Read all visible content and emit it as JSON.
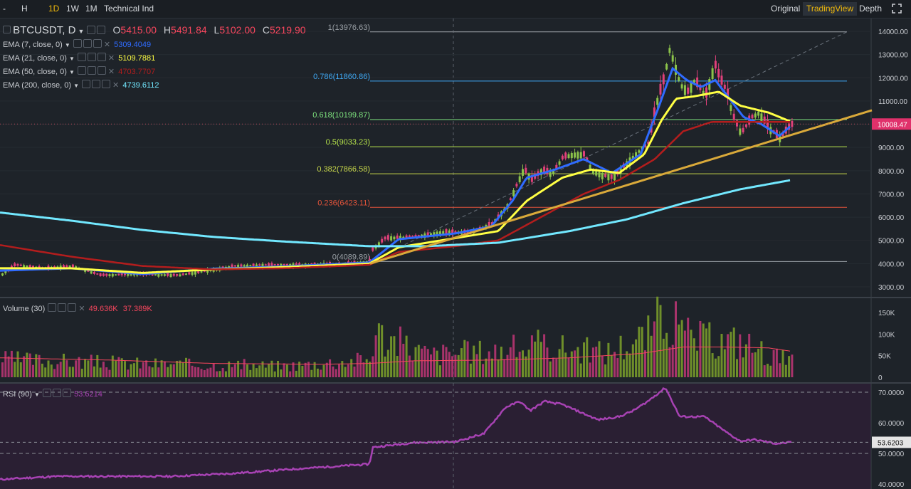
{
  "toolbar": {
    "left_items": [
      "-",
      "H",
      "1D",
      "1W",
      "1M",
      "Technical Ind"
    ],
    "active_interval": "1D",
    "right_items": [
      "Original",
      "TradingView",
      "Depth"
    ],
    "active_view": "TradingView",
    "fullscreen_icon": "fullscreen-icon"
  },
  "legend": {
    "symbol": "BTCUSDT, D",
    "o_label": "O",
    "o": "5415.00",
    "h_label": "H",
    "h": "5491.84",
    "l_label": "L",
    "l": "5102.00",
    "c_label": "C",
    "c": "5219.90",
    "ema": [
      {
        "label": "EMA (7, close, 0)",
        "value": "5309.4049",
        "color": "#2962ff"
      },
      {
        "label": "EMA (21, close, 0)",
        "value": "5109.7881",
        "color": "#ffff3c"
      },
      {
        "label": "EMA (50, close, 0)",
        "value": "4703.7707",
        "color": "#b71c1c"
      },
      {
        "label": "EMA (200, close, 0)",
        "value": "4739.6112",
        "color": "#6ee7ff"
      }
    ],
    "volume_label": "Volume (30)",
    "volume_v1": "49.636K",
    "volume_v2": "37.389K",
    "rsi_label": "RSI (90)",
    "rsi_value": "53.6214"
  },
  "chart_data": [
    {
      "type": "candlestick",
      "title": "BTCUSDT, D",
      "ylim": [
        2500,
        14500
      ],
      "yticks": [
        3000,
        4000,
        5000,
        6000,
        7000,
        8000,
        9000,
        10000,
        11000,
        12000,
        13000,
        14000
      ],
      "ytick_labels": [
        "3000.00",
        "4000.00",
        "5000.00",
        "6000.00",
        "7000.00",
        "8000.00",
        "9000.00",
        "10000.00",
        "11000.00",
        "12000.00",
        "13000.00",
        "14000.00"
      ],
      "last_price": "10008.47",
      "fib_levels": [
        {
          "label": "1(13976.63)",
          "value": 13976.63,
          "color": "#9aa0a6"
        },
        {
          "label": "0.786(11860.86)",
          "value": 11860.86,
          "color": "#3fa9f5"
        },
        {
          "label": "0.618(10199.87)",
          "value": 10199.87,
          "color": "#7fe57f"
        },
        {
          "label": "0.5(9033.23)",
          "value": 9033.23,
          "color": "#b6e34a"
        },
        {
          "label": "0.382(7866.58)",
          "value": 7866.58,
          "color": "#c8d84a"
        },
        {
          "label": "0.236(6423.11)",
          "value": 6423.11,
          "color": "#e0533a"
        },
        {
          "label": "0(4089.89)",
          "value": 4089.89,
          "color": "#9aa0a6"
        }
      ],
      "price_anchors": [
        [
          0,
          3500
        ],
        [
          20,
          3950
        ],
        [
          60,
          3800
        ],
        [
          100,
          3900
        ],
        [
          140,
          3500
        ],
        [
          190,
          3550
        ],
        [
          250,
          3500
        ],
        [
          290,
          3700
        ],
        [
          330,
          3900
        ],
        [
          380,
          3950
        ],
        [
          430,
          3950
        ],
        [
          480,
          4000
        ],
        [
          519,
          4100
        ],
        [
          522,
          4600
        ],
        [
          540,
          5100
        ],
        [
          580,
          5150
        ],
        [
          620,
          5350
        ],
        [
          660,
          5350
        ],
        [
          690,
          5700
        ],
        [
          712,
          6500
        ],
        [
          722,
          7200
        ],
        [
          735,
          8100
        ],
        [
          745,
          7600
        ],
        [
          760,
          8000
        ],
        [
          775,
          7900
        ],
        [
          790,
          8600
        ],
        [
          805,
          8700
        ],
        [
          820,
          8700
        ],
        [
          830,
          8000
        ],
        [
          845,
          7800
        ],
        [
          860,
          7700
        ],
        [
          875,
          8200
        ],
        [
          895,
          8800
        ],
        [
          910,
          9200
        ],
        [
          920,
          10800
        ],
        [
          932,
          12000
        ],
        [
          940,
          13300
        ],
        [
          946,
          12600
        ],
        [
          955,
          11700
        ],
        [
          965,
          11400
        ],
        [
          975,
          11900
        ],
        [
          990,
          11200
        ],
        [
          1003,
          12600
        ],
        [
          1010,
          12000
        ],
        [
          1020,
          11400
        ],
        [
          1028,
          10400
        ],
        [
          1040,
          9600
        ],
        [
          1055,
          10300
        ],
        [
          1065,
          10500
        ],
        [
          1080,
          9800
        ],
        [
          1095,
          9400
        ],
        [
          1105,
          9800
        ],
        [
          1112,
          10000
        ]
      ],
      "ema_series": [
        {
          "name": "EMA 7",
          "color": "#2f6bff",
          "anchors": [
            [
              0,
              3700
            ],
            [
              100,
              3800
            ],
            [
              200,
              3550
            ],
            [
              300,
              3780
            ],
            [
              400,
              3880
            ],
            [
              519,
              4050
            ],
            [
              560,
              5050
            ],
            [
              640,
              5300
            ],
            [
              690,
              5600
            ],
            [
              720,
              6700
            ],
            [
              740,
              7700
            ],
            [
              780,
              8050
            ],
            [
              820,
              8500
            ],
            [
              860,
              7900
            ],
            [
              900,
              8700
            ],
            [
              925,
              10700
            ],
            [
              945,
              12400
            ],
            [
              965,
              11900
            ],
            [
              985,
              11600
            ],
            [
              1005,
              11900
            ],
            [
              1025,
              11100
            ],
            [
              1045,
              10300
            ],
            [
              1070,
              10000
            ],
            [
              1095,
              9500
            ],
            [
              1112,
              9950
            ]
          ]
        },
        {
          "name": "EMA 21",
          "color": "#ffff44",
          "anchors": [
            [
              0,
              3800
            ],
            [
              100,
              3800
            ],
            [
              200,
              3600
            ],
            [
              300,
              3750
            ],
            [
              400,
              3850
            ],
            [
              519,
              4000
            ],
            [
              560,
              4700
            ],
            [
              640,
              5100
            ],
            [
              700,
              5400
            ],
            [
              740,
              6700
            ],
            [
              790,
              7700
            ],
            [
              830,
              8050
            ],
            [
              870,
              7900
            ],
            [
              905,
              8700
            ],
            [
              930,
              10200
            ],
            [
              950,
              11100
            ],
            [
              975,
              11200
            ],
            [
              1010,
              11400
            ],
            [
              1040,
              10800
            ],
            [
              1080,
              10500
            ],
            [
              1112,
              10100
            ]
          ]
        },
        {
          "name": "EMA 50",
          "color": "#b31d1d",
          "anchors": [
            [
              0,
              4800
            ],
            [
              100,
              4300
            ],
            [
              200,
              3900
            ],
            [
              300,
              3750
            ],
            [
              400,
              3800
            ],
            [
              519,
              3950
            ],
            [
              560,
              4500
            ],
            [
              640,
              4750
            ],
            [
              700,
              5000
            ],
            [
              760,
              6000
            ],
            [
              820,
              7000
            ],
            [
              870,
              7600
            ],
            [
              920,
              8500
            ],
            [
              960,
              9700
            ],
            [
              1000,
              10100
            ],
            [
              1040,
              10100
            ],
            [
              1080,
              10100
            ],
            [
              1112,
              10100
            ]
          ]
        },
        {
          "name": "EMA 200",
          "color": "#72e8ff",
          "anchors": [
            [
              0,
              6200
            ],
            [
              100,
              5850
            ],
            [
              200,
              5450
            ],
            [
              300,
              5150
            ],
            [
              400,
              4950
            ],
            [
              519,
              4750
            ],
            [
              600,
              4750
            ],
            [
              700,
              4900
            ],
            [
              800,
              5400
            ],
            [
              880,
              5900
            ],
            [
              960,
              6600
            ],
            [
              1040,
              7200
            ],
            [
              1112,
              7600
            ]
          ]
        }
      ],
      "trendline": {
        "from": [
          520,
          4000
        ],
        "to": [
          1225,
          10600
        ],
        "color": "#d9a93a"
      },
      "fib_diagonal": {
        "from": [
          520,
          4100
        ],
        "to": [
          1190,
          13976
        ],
        "color": "#6b737d"
      }
    },
    {
      "type": "bar",
      "title": "Volume (30)",
      "ylim": [
        0,
        190000
      ],
      "yticks": [
        0,
        50000,
        100000,
        150000
      ],
      "ytick_labels": [
        "0",
        "50K",
        "100K",
        "150K"
      ],
      "ma_color": "#f6465d",
      "volume_anchors": [
        [
          0,
          40000
        ],
        [
          200,
          30000
        ],
        [
          400,
          25000
        ],
        [
          519,
          40000
        ],
        [
          524,
          100000
        ],
        [
          600,
          50000
        ],
        [
          700,
          60000
        ],
        [
          760,
          70000
        ],
        [
          850,
          55000
        ],
        [
          910,
          95000
        ],
        [
          935,
          150000
        ],
        [
          955,
          95000
        ],
        [
          1000,
          80000
        ],
        [
          1040,
          80000
        ],
        [
          1080,
          50000
        ],
        [
          1112,
          35000
        ]
      ],
      "ma_anchors": [
        [
          0,
          45000
        ],
        [
          150,
          40000
        ],
        [
          300,
          32000
        ],
        [
          450,
          30000
        ],
        [
          519,
          32000
        ],
        [
          580,
          38000
        ],
        [
          700,
          40000
        ],
        [
          800,
          45000
        ],
        [
          900,
          55000
        ],
        [
          960,
          70000
        ],
        [
          1020,
          70000
        ],
        [
          1080,
          68000
        ],
        [
          1112,
          60000
        ]
      ]
    },
    {
      "type": "line",
      "title": "RSI (90)",
      "ylim": [
        40,
        72
      ],
      "yticks": [
        40,
        50,
        60,
        70
      ],
      "ytick_labels": [
        "40.0000",
        "50.0000",
        "60.0000",
        "70.0000"
      ],
      "current_value": "53.6203",
      "line_color": "#a742b3",
      "rsi_anchors": [
        [
          0,
          41.5
        ],
        [
          80,
          42.5
        ],
        [
          160,
          42.5
        ],
        [
          240,
          42.5
        ],
        [
          330,
          43.5
        ],
        [
          420,
          45
        ],
        [
          519,
          46.5
        ],
        [
          524,
          52
        ],
        [
          580,
          53.5
        ],
        [
          640,
          53.8
        ],
        [
          680,
          56.5
        ],
        [
          710,
          65
        ],
        [
          730,
          67
        ],
        [
          745,
          64
        ],
        [
          765,
          67
        ],
        [
          790,
          66
        ],
        [
          820,
          63
        ],
        [
          840,
          61
        ],
        [
          870,
          62
        ],
        [
          890,
          64
        ],
        [
          910,
          67
        ],
        [
          935,
          71.5
        ],
        [
          955,
          62
        ],
        [
          990,
          62
        ],
        [
          1020,
          57
        ],
        [
          1040,
          54
        ],
        [
          1060,
          54.5
        ],
        [
          1090,
          53.2
        ],
        [
          1112,
          53.6
        ]
      ]
    }
  ]
}
